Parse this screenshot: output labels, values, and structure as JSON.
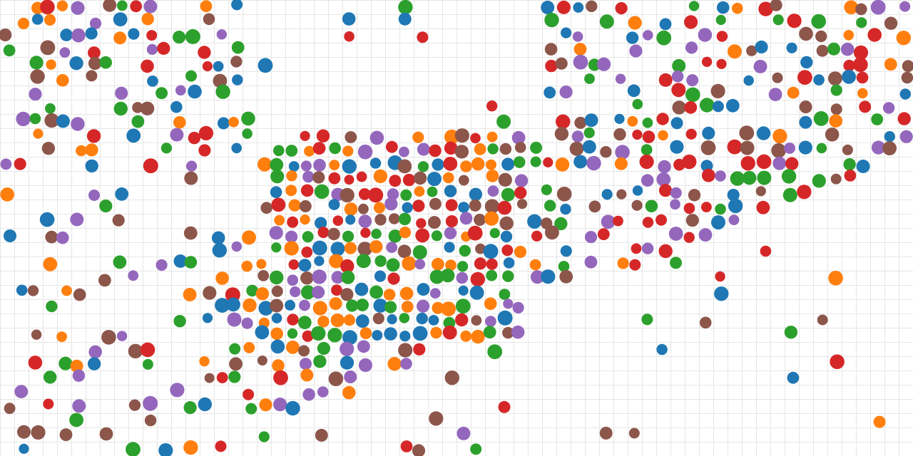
{
  "palette": {
    "blue": "#1f77b4",
    "orange": "#ff7f0e",
    "green": "#2ca02c",
    "red": "#d62728",
    "purple": "#9467bd",
    "brown": "#8c564b"
  },
  "background": "#ffffff",
  "grid_color": "#e6e6e6",
  "cells": [
    [
      0,
      10,
      21,
      22,
      24,
      25,
      27,
      28,
      31,
      34,
      35,
      40,
      42,
      44,
      48,
      49,
      53,
      54,
      55,
      58,
      59,
      60,
      61,
      62
    ],
    [
      0,
      1,
      2,
      3,
      4,
      8,
      9,
      10,
      11,
      12,
      13,
      14,
      15,
      16,
      17,
      40,
      46,
      47,
      48,
      49,
      50,
      51,
      52,
      53,
      54,
      55,
      56,
      58,
      59
    ],
    [
      0,
      2,
      4,
      5,
      8,
      9,
      11,
      13,
      14,
      15,
      16,
      17,
      41,
      42,
      43,
      45,
      47,
      48,
      49,
      52,
      53,
      56,
      57,
      58,
      59,
      60,
      62
    ],
    [
      1,
      2,
      4,
      5,
      7,
      8,
      9,
      10,
      11,
      12,
      13,
      14,
      16,
      17,
      18,
      29,
      30,
      31,
      32,
      33,
      34,
      35,
      36,
      37,
      38,
      39,
      40,
      41,
      42,
      43,
      44,
      45,
      48,
      49,
      50,
      51,
      53,
      55,
      56,
      57,
      58,
      59,
      60,
      61,
      62
    ],
    [
      0,
      2,
      3,
      4,
      6,
      7,
      8,
      9,
      10,
      12,
      13,
      14,
      15,
      16,
      17,
      18,
      19,
      20,
      21,
      22,
      23,
      24,
      25,
      26,
      27,
      28,
      29,
      30,
      31,
      32,
      33,
      34,
      35,
      36,
      37,
      38,
      39,
      40,
      41,
      42,
      43,
      44,
      45,
      46,
      47,
      49,
      50,
      51,
      53,
      54,
      55,
      56,
      57,
      58,
      59,
      60,
      61,
      62
    ],
    [
      1,
      3,
      5,
      6,
      10,
      11,
      12,
      13,
      14,
      15,
      16,
      17,
      18,
      19,
      20,
      21,
      22,
      23,
      24,
      25,
      26,
      27,
      28,
      29,
      30,
      31,
      32,
      33,
      34,
      35,
      36,
      37,
      39,
      41,
      42,
      44,
      45,
      46,
      47,
      48,
      49,
      50,
      52,
      53,
      54,
      55,
      56,
      57,
      58,
      59,
      60,
      61,
      62
    ],
    [
      0,
      1,
      2,
      3,
      4,
      7,
      8,
      9,
      10,
      11,
      12,
      13,
      14,
      15,
      16,
      17,
      18,
      19,
      20,
      21,
      22,
      23,
      24,
      25,
      26,
      27,
      28,
      29,
      30,
      31,
      32,
      33,
      34,
      35,
      37,
      38,
      39,
      41,
      42,
      43,
      44,
      46,
      47,
      48,
      49,
      51,
      52,
      53,
      54,
      55,
      56,
      57,
      58,
      59,
      60,
      62
    ],
    [
      0,
      2,
      4,
      5,
      6,
      7,
      8,
      9,
      10,
      11,
      12,
      13,
      14,
      15,
      16,
      17,
      18,
      19,
      20,
      21,
      22,
      23,
      24,
      25,
      26,
      27,
      28,
      29,
      30,
      31,
      32,
      33,
      34,
      35,
      36,
      37,
      38,
      39,
      40,
      41,
      42,
      43,
      44,
      45,
      46,
      47,
      48,
      49,
      50,
      51,
      52,
      53,
      54,
      55,
      56,
      57,
      58,
      59,
      60,
      61,
      62
    ],
    [
      0,
      1,
      2,
      3,
      4,
      5,
      6,
      7,
      8,
      9,
      10,
      11,
      12,
      13,
      14,
      15,
      16,
      17,
      18,
      19,
      20,
      21,
      22,
      23,
      24,
      25,
      26,
      27,
      28,
      29,
      30,
      31,
      32,
      33,
      34,
      35,
      36,
      37,
      38,
      39,
      40,
      41,
      42,
      43,
      44,
      45,
      46,
      47,
      48,
      49,
      50,
      51,
      52,
      53,
      54,
      55,
      56,
      57,
      58,
      59,
      60,
      61,
      62
    ],
    [
      0,
      1,
      2,
      3,
      4,
      5,
      6,
      7,
      8,
      9,
      10,
      11,
      12,
      13,
      14,
      15,
      16,
      17,
      18,
      19,
      20,
      21,
      22,
      23,
      24,
      25,
      26,
      27,
      28,
      29,
      30,
      31,
      32,
      33,
      34,
      35,
      36,
      37,
      38,
      39,
      40,
      41,
      42,
      43,
      44,
      45,
      46,
      47,
      48,
      49,
      50,
      51,
      52,
      53,
      54,
      55,
      56,
      57,
      58,
      59,
      60,
      61,
      62
    ],
    [
      0,
      1,
      2,
      3,
      4,
      5,
      6,
      7,
      8,
      9,
      10,
      11,
      12,
      13,
      14,
      15,
      16,
      17,
      18,
      19,
      20,
      21,
      22,
      23,
      24,
      25,
      26,
      27,
      28,
      29,
      30,
      31,
      32,
      33,
      34,
      35,
      36,
      37,
      38,
      39,
      40,
      41,
      42,
      43,
      44,
      45,
      46,
      47,
      48,
      49,
      50,
      51,
      52,
      53,
      54,
      55,
      56,
      57,
      58,
      59,
      60,
      61,
      62
    ],
    [
      0,
      1,
      2,
      3,
      4,
      5,
      6,
      7,
      8,
      9,
      10,
      11,
      12,
      13,
      14,
      15,
      16,
      17,
      18,
      19,
      20,
      21,
      22,
      23,
      24,
      25,
      26,
      27,
      28,
      29,
      30,
      31,
      32,
      33,
      34,
      35,
      36,
      37,
      38,
      39,
      40,
      41,
      42,
      43,
      44,
      45,
      46,
      47,
      48,
      49,
      50,
      51,
      52,
      53,
      54,
      55,
      56,
      57,
      58,
      59,
      60,
      61,
      62
    ],
    [
      0,
      1,
      2,
      3,
      4,
      5,
      6,
      7,
      8,
      9,
      10,
      11,
      12,
      13,
      14,
      15,
      16,
      17,
      18,
      19,
      20,
      21,
      22,
      23,
      24,
      25,
      26,
      27,
      28,
      29,
      30,
      31,
      32,
      33,
      34,
      35,
      36,
      37,
      38,
      39,
      40,
      41,
      42,
      43,
      44,
      45,
      46,
      47,
      48,
      49,
      50,
      51,
      52,
      53,
      54,
      55,
      56,
      57,
      58,
      59,
      60,
      61,
      62
    ],
    [
      0,
      1,
      2,
      3,
      4,
      5,
      6,
      7,
      8,
      9,
      10,
      11,
      12,
      13,
      14,
      15,
      16,
      17,
      18,
      19,
      20,
      21,
      22,
      23,
      24,
      25,
      26,
      27,
      28,
      29,
      30,
      31,
      32,
      33,
      34,
      35,
      36,
      37,
      38,
      39,
      40,
      41,
      42,
      43,
      44,
      45,
      46,
      47,
      48,
      49,
      50,
      51,
      52,
      53,
      54,
      55,
      56,
      57,
      58,
      59,
      60,
      61,
      62
    ],
    [
      0,
      1,
      2,
      3,
      4,
      5,
      6,
      7,
      8,
      9,
      10,
      11,
      12,
      13,
      14,
      15,
      16,
      17,
      18,
      19,
      20,
      21,
      22,
      23,
      24,
      25,
      26,
      27,
      28,
      29,
      30,
      31,
      32,
      33,
      34,
      35,
      36,
      37,
      38,
      39,
      40,
      41,
      42,
      43,
      44,
      45,
      46,
      47,
      48,
      49,
      50,
      51,
      52,
      53,
      54,
      55,
      56,
      57,
      58,
      59,
      60,
      61,
      62
    ],
    [
      0,
      1,
      2,
      3,
      4,
      5,
      6,
      7,
      8,
      9,
      10,
      11,
      12,
      13,
      14,
      15,
      16,
      17,
      18,
      19,
      20,
      21,
      22,
      23,
      24,
      25,
      26,
      27,
      28,
      29,
      30,
      31,
      32,
      33,
      34,
      35,
      36,
      37,
      38,
      39,
      40,
      41,
      42,
      43,
      44,
      45,
      46,
      47,
      48,
      49,
      50,
      51,
      52,
      53,
      54,
      55,
      56,
      57,
      58,
      59,
      60,
      61,
      62
    ],
    [
      0,
      1,
      2,
      3,
      4,
      5,
      6,
      7,
      8,
      9,
      10,
      11,
      12,
      13,
      14,
      15,
      16,
      17,
      18,
      19,
      20,
      21,
      22,
      23,
      24,
      25,
      26,
      27,
      28,
      29,
      30,
      31,
      32,
      33,
      34,
      35,
      36,
      37,
      38,
      39,
      40,
      41,
      42,
      43,
      44,
      45,
      46,
      47,
      48,
      49,
      50,
      51,
      52,
      53,
      54,
      55,
      56,
      57,
      58,
      59,
      60,
      61,
      62
    ],
    [
      0,
      1,
      2,
      3,
      4,
      5,
      6,
      7,
      8,
      9,
      10,
      11,
      12,
      13,
      14,
      15,
      16,
      17,
      18,
      19,
      20,
      21,
      22,
      23,
      24,
      25,
      26,
      27,
      28,
      29,
      30,
      31,
      32,
      33,
      34,
      35,
      36,
      37,
      38,
      39,
      40,
      41,
      42,
      43,
      44,
      45,
      46,
      47,
      48,
      49,
      50,
      51,
      52,
      53,
      54,
      55,
      56,
      57,
      58,
      59,
      60,
      61,
      62
    ],
    [
      0,
      1,
      2,
      3,
      4,
      5,
      6,
      7,
      8,
      9,
      10,
      11,
      12,
      13,
      14,
      15,
      16,
      17,
      18,
      19,
      20,
      21,
      22,
      23,
      24,
      25,
      26,
      27,
      28,
      29,
      30,
      31,
      32,
      33,
      34,
      35,
      36,
      37,
      38,
      39,
      40,
      41,
      42,
      43,
      44,
      45,
      46,
      47,
      48,
      49,
      50,
      51,
      52,
      53,
      54,
      55,
      56,
      57,
      58,
      59,
      60,
      61,
      62
    ],
    [
      0,
      1,
      2,
      3,
      4,
      5,
      6,
      7,
      8,
      9,
      10,
      11,
      12,
      13,
      14,
      15,
      16,
      17,
      18,
      19,
      20,
      21,
      22,
      23,
      24,
      25,
      26,
      27,
      28,
      29,
      30,
      31,
      32,
      33,
      34,
      35,
      36,
      37,
      38,
      39,
      40,
      41,
      42,
      43,
      44,
      45,
      46,
      47,
      48,
      49,
      50,
      51,
      52,
      53,
      54,
      55,
      56,
      57,
      58,
      59,
      60,
      61,
      62
    ],
    [
      0,
      1,
      2,
      3,
      4,
      5,
      6,
      7,
      8,
      9,
      10,
      11,
      12,
      13,
      14,
      15,
      16,
      17,
      18,
      19,
      20,
      21,
      22,
      23,
      24,
      25,
      26,
      27,
      28,
      29,
      30,
      31,
      32,
      33,
      34,
      35,
      36,
      37,
      38,
      39,
      40,
      41,
      42,
      43,
      44,
      45,
      46,
      47,
      48,
      49,
      50,
      51,
      52,
      53,
      54,
      55,
      56,
      57,
      58,
      59,
      60,
      61,
      62
    ],
    [
      0,
      1,
      2,
      3,
      4,
      5,
      6,
      7,
      8,
      9,
      10,
      11,
      12,
      13,
      14,
      15,
      16,
      17,
      18,
      19,
      20,
      21,
      22,
      23,
      24,
      25,
      26,
      27,
      28,
      29,
      30,
      31,
      32,
      33,
      34,
      35,
      36,
      37,
      38,
      39,
      40,
      41,
      42,
      43,
      44,
      45,
      46,
      47,
      48,
      49,
      50,
      51,
      52,
      53,
      54,
      55,
      56,
      57,
      58,
      59,
      60,
      61,
      62
    ],
    [
      0,
      1,
      2,
      3,
      4,
      5,
      6,
      7,
      8,
      9,
      10,
      11,
      12,
      13,
      14,
      15,
      16,
      17,
      18,
      19,
      20,
      21,
      22,
      23,
      24,
      25,
      26,
      27,
      28,
      29,
      30,
      31,
      32,
      33,
      34,
      35,
      36,
      37,
      38,
      39,
      40,
      41,
      42,
      43,
      44,
      45,
      46,
      47,
      48,
      49,
      50,
      51,
      52,
      53,
      54,
      55,
      56,
      57,
      58,
      59,
      60,
      61,
      62
    ],
    [
      0,
      1,
      2,
      3,
      4,
      5,
      6,
      7,
      8,
      9,
      10,
      11,
      12,
      13,
      14,
      15,
      16,
      17,
      18,
      19,
      20,
      21,
      22,
      23,
      24,
      25,
      26,
      27,
      28,
      29,
      30,
      31,
      32,
      33,
      34,
      35,
      36,
      37,
      38,
      39,
      40,
      41,
      42,
      43,
      44,
      45,
      46,
      47,
      48,
      49,
      50,
      51,
      52,
      53,
      54,
      55,
      56,
      57,
      58,
      59,
      60,
      61,
      62
    ],
    [
      0,
      1,
      2,
      3,
      4,
      5,
      6,
      7,
      8,
      9,
      10,
      11,
      12,
      13,
      14,
      15,
      16,
      17,
      18,
      19,
      20,
      21,
      22,
      23,
      24,
      25,
      26,
      27,
      28,
      29,
      30,
      31,
      32,
      33,
      34,
      35,
      36,
      37,
      38,
      39,
      40,
      41,
      42,
      43,
      44,
      45,
      46,
      47,
      48,
      49,
      50,
      51,
      52,
      53,
      54,
      55,
      56,
      57,
      58,
      59,
      60,
      61,
      62
    ],
    [
      0,
      1,
      2,
      3,
      4,
      5,
      6,
      7,
      8,
      9,
      10,
      11,
      12,
      13,
      14,
      15,
      16,
      17,
      18,
      19,
      20,
      21,
      22,
      23,
      24,
      25,
      26,
      27,
      28,
      29,
      30,
      31,
      32,
      33,
      34,
      35,
      36,
      37,
      38,
      39,
      40,
      41,
      42,
      43,
      44,
      45,
      46,
      47,
      48,
      49,
      50,
      51,
      52,
      53,
      54,
      55,
      56,
      57,
      58,
      59,
      60,
      61,
      62
    ],
    [
      0,
      1,
      2,
      3,
      4,
      5,
      6,
      7,
      8,
      9,
      10,
      11,
      12,
      13,
      14,
      15,
      16,
      17,
      18,
      19,
      20,
      21,
      22,
      23,
      24,
      25,
      26,
      27,
      28,
      29,
      30,
      31,
      32,
      33,
      34,
      35,
      36,
      37,
      38,
      39,
      40,
      41,
      42,
      43,
      44,
      45,
      46,
      47,
      48,
      49,
      50,
      51,
      52,
      53,
      54,
      55,
      56,
      57,
      58,
      59,
      60,
      61,
      62
    ],
    [
      0,
      1,
      2,
      3,
      4,
      5,
      6,
      7,
      8,
      9,
      10,
      11,
      12,
      13,
      14,
      15,
      16,
      17,
      18,
      19,
      20,
      21,
      22,
      23,
      24,
      25,
      26,
      27,
      28,
      29,
      30,
      31,
      32,
      33,
      34,
      35,
      36,
      37,
      38,
      39,
      40,
      41,
      42,
      43,
      44,
      45,
      46,
      47,
      48,
      49,
      50,
      51,
      52,
      53,
      54,
      55,
      56,
      57,
      58,
      59,
      60,
      61,
      62
    ],
    [
      0,
      1,
      2,
      3,
      4,
      5,
      6,
      7,
      8,
      9,
      10,
      11,
      12,
      13,
      14,
      15,
      16,
      17,
      18,
      19,
      20,
      21,
      22,
      23,
      24,
      25,
      26,
      27,
      28,
      29,
      30,
      31,
      32,
      33,
      34,
      35,
      36,
      37,
      38,
      39,
      40,
      41,
      42,
      43,
      44,
      45,
      46,
      47,
      48,
      49,
      50,
      51,
      52,
      53,
      54,
      55,
      56,
      57,
      58,
      59,
      60,
      61,
      62
    ],
    [
      0,
      1,
      2,
      3,
      4,
      5,
      6,
      7,
      8,
      9,
      10,
      11,
      12,
      13,
      14,
      15,
      16,
      17,
      18,
      19,
      20,
      21,
      22,
      23,
      24,
      25,
      26,
      27,
      28,
      29,
      30,
      31,
      32,
      33,
      34,
      35,
      36,
      37,
      38,
      39,
      40,
      41,
      42,
      43,
      44,
      45,
      46,
      47,
      48,
      49,
      50,
      51,
      52,
      53,
      54,
      55,
      56,
      57,
      58,
      59,
      60,
      61,
      62
    ],
    [
      0,
      1,
      2,
      3,
      4,
      5,
      6,
      7,
      8,
      9,
      10,
      11,
      12,
      13,
      14,
      15,
      16,
      17,
      18,
      19,
      20,
      21,
      22,
      23,
      24,
      25,
      26,
      27,
      28,
      29,
      30,
      31,
      32,
      33,
      34,
      35,
      36,
      37,
      38,
      39,
      40,
      41,
      42,
      43,
      44,
      45,
      46,
      47,
      48,
      49,
      50,
      51,
      52,
      53,
      54,
      55,
      56,
      57,
      58,
      59,
      60,
      61,
      62
    ],
    [
      0,
      1,
      2,
      3,
      4,
      5,
      6,
      7,
      8,
      9,
      10,
      11,
      12,
      13,
      14,
      15,
      16,
      17,
      18,
      19,
      20,
      21,
      22,
      23,
      24,
      25,
      26,
      27,
      28,
      29,
      30,
      31,
      32,
      33,
      34,
      35,
      36,
      37,
      38,
      39,
      40,
      41,
      42,
      43,
      44,
      45,
      46,
      47,
      48,
      49,
      50,
      51,
      52,
      53,
      54,
      55,
      56,
      57,
      58,
      59,
      60,
      61,
      62
    ]
  ]
}
